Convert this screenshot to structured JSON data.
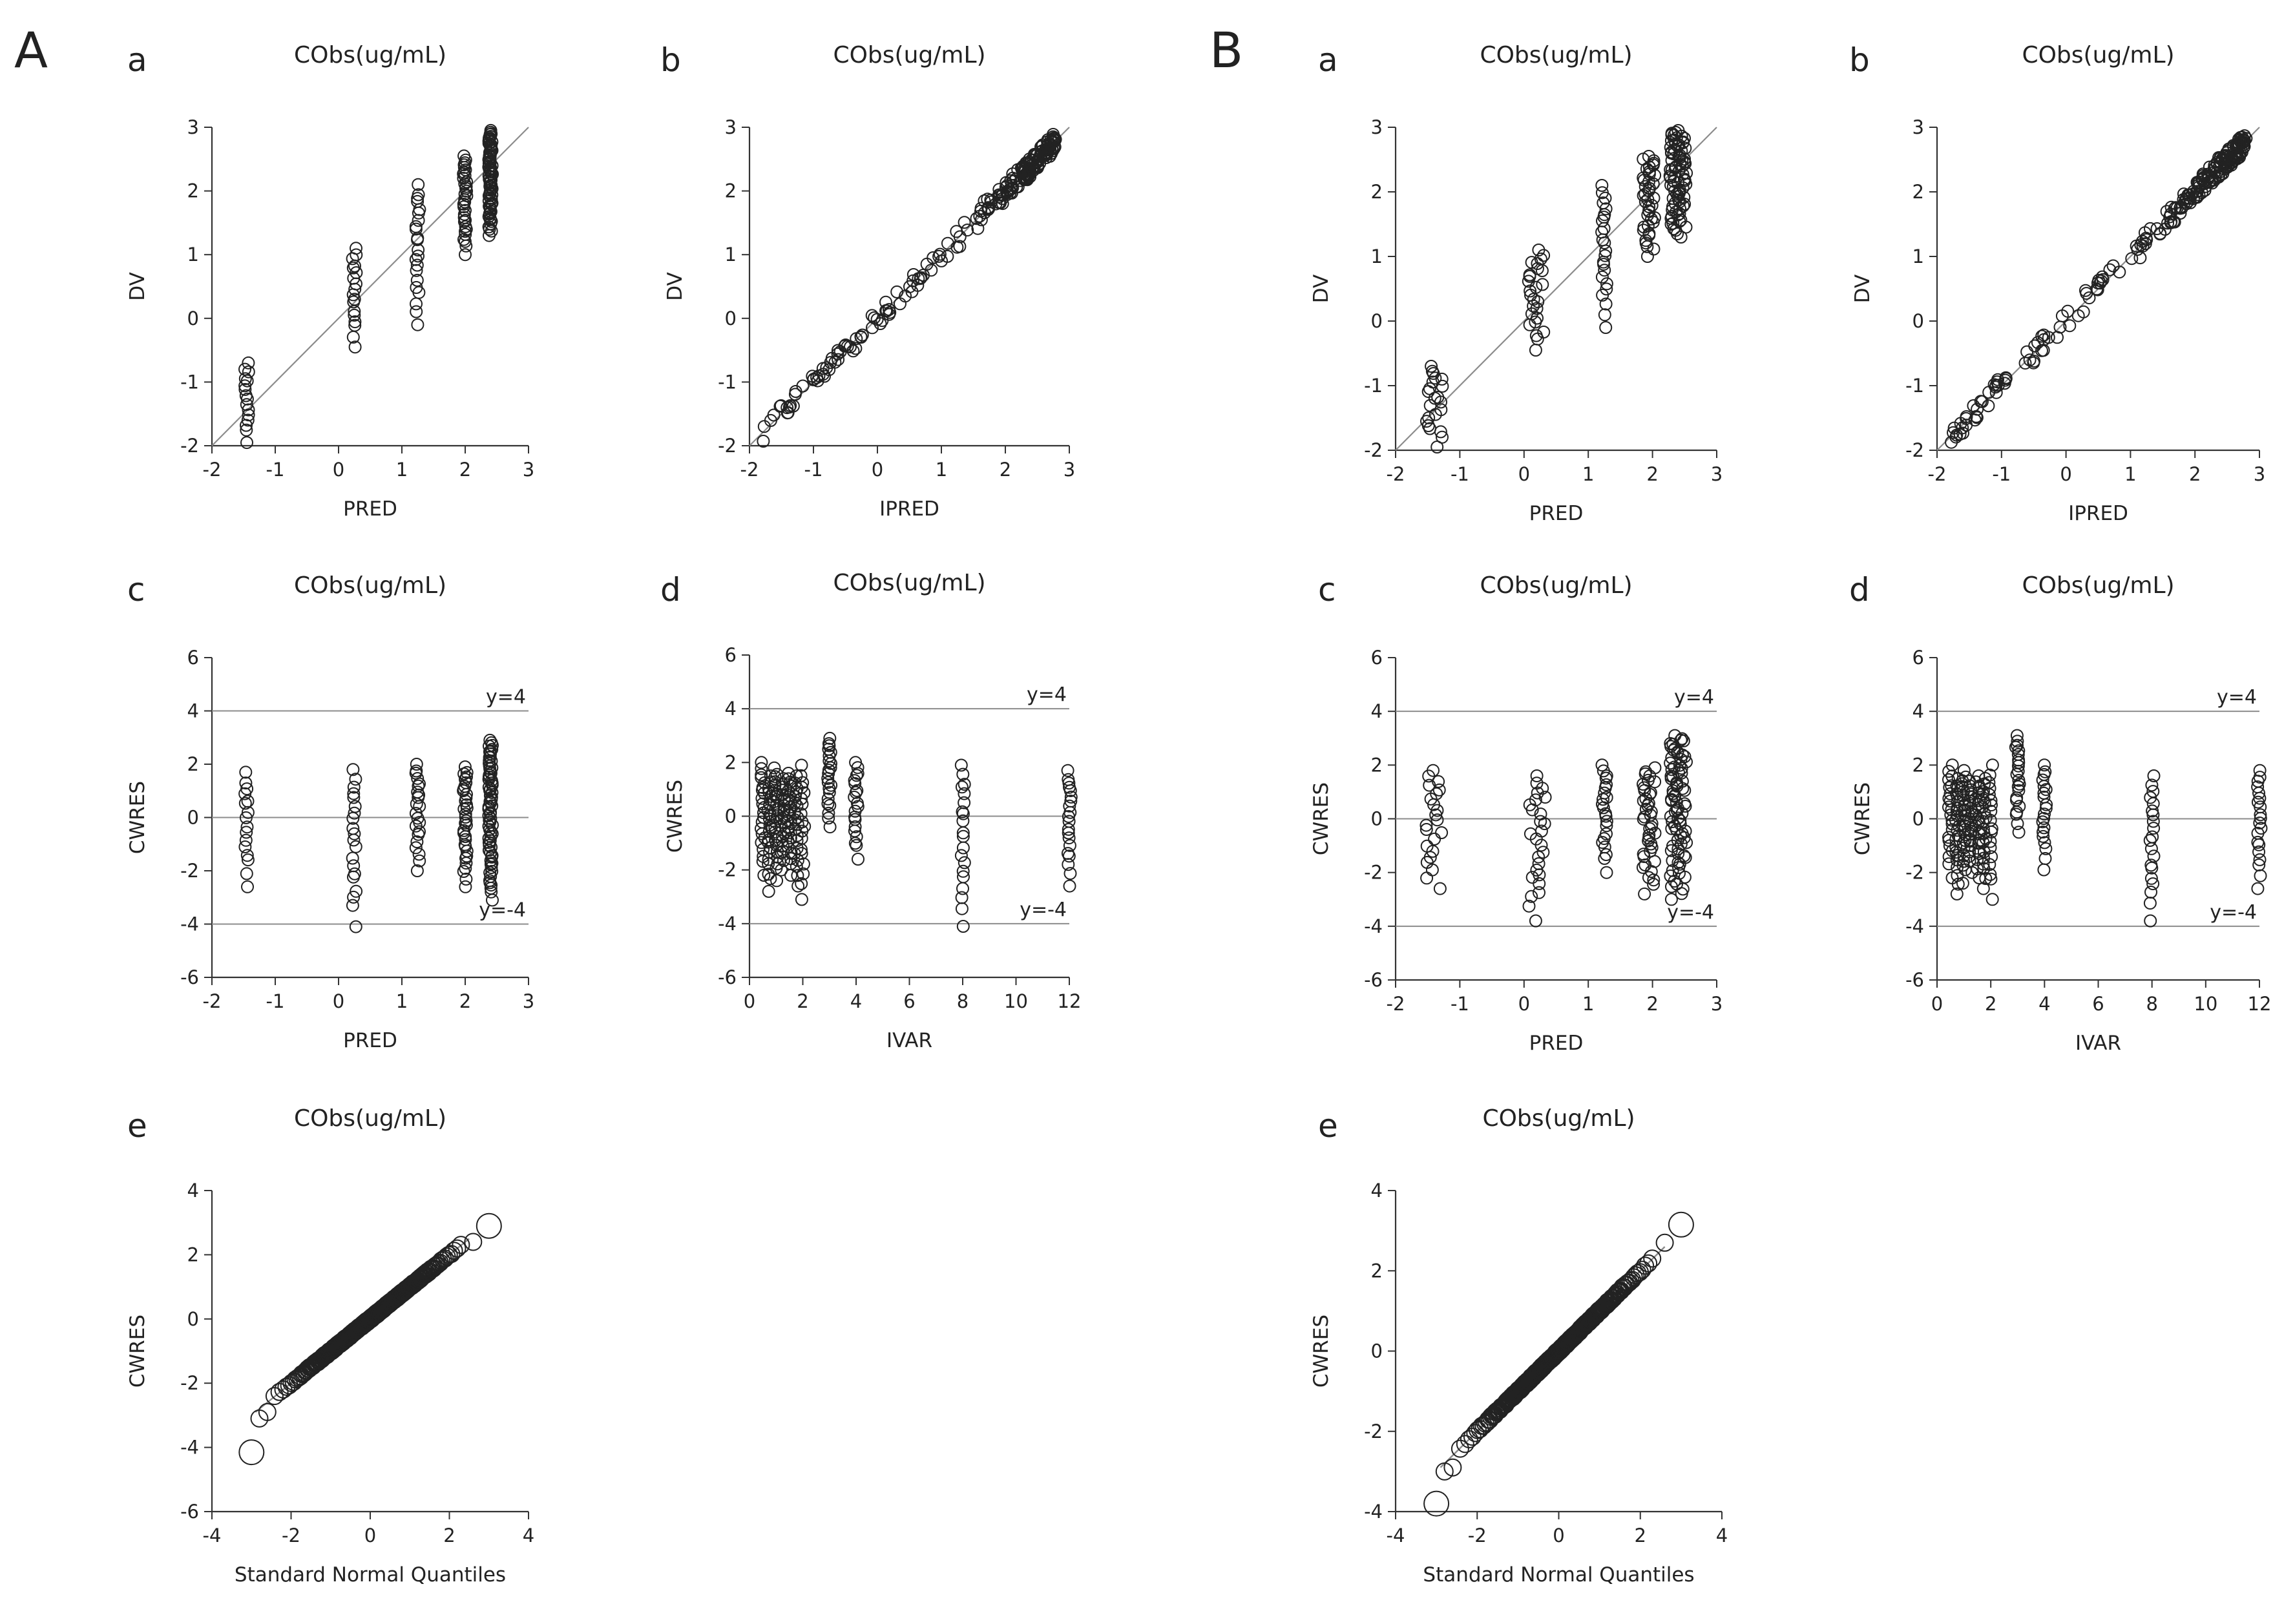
{
  "figure": {
    "groups": [
      {
        "letter": "A",
        "panels": [
          {
            "letter": "a",
            "title": "CObs(ug/mL)"
          },
          {
            "letter": "b",
            "title": "CObs(ug/mL)"
          },
          {
            "letter": "c",
            "title": "CObs(ug/mL)"
          },
          {
            "letter": "d",
            "title": "CObs(ug/mL)"
          },
          {
            "letter": "e",
            "title": "CObs(ug/mL)"
          }
        ]
      },
      {
        "letter": "B",
        "panels": [
          {
            "letter": "a",
            "title": "CObs(ug/mL)"
          },
          {
            "letter": "b",
            "title": "CObs(ug/mL)"
          },
          {
            "letter": "c",
            "title": "CObs(ug/mL)"
          },
          {
            "letter": "d",
            "title": "CObs(ug/mL)"
          },
          {
            "letter": "e",
            "title": "CObs(ug/mL)"
          }
        ]
      }
    ]
  },
  "colors": {
    "marker": "#222222",
    "axis": "#333333",
    "reference_line": "#8c8c8c"
  },
  "chart_data": [
    {
      "id": "A-a",
      "type": "scatter",
      "title": "CObs(ug/mL)",
      "xlabel": "PRED",
      "ylabel": "DV",
      "xlim": [
        -2,
        3
      ],
      "ylim": [
        -2,
        3
      ],
      "xticks": [
        -2,
        -1,
        0,
        1,
        2,
        3
      ],
      "yticks": [
        -2,
        -1,
        0,
        1,
        2,
        3
      ],
      "identity_line": true,
      "h_lines": [],
      "clusters": [
        {
          "x": -1.45,
          "n": 16,
          "y_min": -1.95,
          "y_max": -0.7
        },
        {
          "x": 0.25,
          "n": 18,
          "y_min": -0.45,
          "y_max": 1.1
        },
        {
          "x": 1.25,
          "n": 22,
          "y_min": -0.1,
          "y_max": 2.1
        },
        {
          "x": 2.0,
          "n": 34,
          "y_min": 1.0,
          "y_max": 2.55
        },
        {
          "x": 2.4,
          "n": 70,
          "y_min": 1.3,
          "y_max": 2.95
        }
      ]
    },
    {
      "id": "A-b",
      "type": "scatter",
      "title": "CObs(ug/mL)",
      "xlabel": "IPRED",
      "ylabel": "DV",
      "xlim": [
        -2,
        3
      ],
      "ylim": [
        -2,
        3
      ],
      "xticks": [
        -2,
        -1,
        0,
        1,
        2,
        3
      ],
      "yticks": [
        -2,
        -1,
        0,
        1,
        2,
        3
      ],
      "identity_line": true,
      "h_lines": [],
      "band": {
        "x_min": -1.8,
        "x_max": 2.8,
        "n": 230,
        "spread": 0.12,
        "dense_above": 1.5
      }
    },
    {
      "id": "A-c",
      "type": "scatter",
      "title": "CObs(ug/mL)",
      "xlabel": "PRED",
      "ylabel": "CWRES",
      "xlim": [
        -2,
        3
      ],
      "ylim": [
        -6,
        6
      ],
      "xticks": [
        -2,
        -1,
        0,
        1,
        2,
        3
      ],
      "yticks": [
        -6,
        -4,
        -2,
        0,
        2,
        4,
        6
      ],
      "identity_line": false,
      "h_lines": [
        {
          "y": 4,
          "label": "y=4"
        },
        {
          "y": 0,
          "label": ""
        },
        {
          "y": -4,
          "label": "y=-4"
        }
      ],
      "clusters": [
        {
          "x": -1.45,
          "n": 16,
          "y_min": -2.6,
          "y_max": 1.7
        },
        {
          "x": 0.25,
          "n": 20,
          "y_min": -4.1,
          "y_max": 1.8
        },
        {
          "x": 1.25,
          "n": 22,
          "y_min": -2.0,
          "y_max": 2.0
        },
        {
          "x": 2.0,
          "n": 34,
          "y_min": -2.6,
          "y_max": 1.9
        },
        {
          "x": 2.4,
          "n": 70,
          "y_min": -3.1,
          "y_max": 2.9
        }
      ]
    },
    {
      "id": "A-d",
      "type": "scatter",
      "title": "CObs(ug/mL)",
      "xlabel": "IVAR",
      "ylabel": "CWRES",
      "xlim": [
        0,
        12
      ],
      "ylim": [
        -6,
        6
      ],
      "xticks": [
        0,
        2,
        4,
        6,
        8,
        10,
        12
      ],
      "yticks": [
        -6,
        -4,
        -2,
        0,
        2,
        4,
        6
      ],
      "identity_line": false,
      "h_lines": [
        {
          "y": 4,
          "label": "y=4"
        },
        {
          "y": 0,
          "label": ""
        },
        {
          "y": -4,
          "label": "y=-4"
        }
      ],
      "clusters": [
        {
          "x": 0.5,
          "n": 22,
          "y_min": -2.2,
          "y_max": 2.0
        },
        {
          "x": 0.75,
          "n": 22,
          "y_min": -2.8,
          "y_max": 1.5
        },
        {
          "x": 1.0,
          "n": 24,
          "y_min": -2.4,
          "y_max": 1.8
        },
        {
          "x": 1.25,
          "n": 22,
          "y_min": -2.0,
          "y_max": 1.4
        },
        {
          "x": 1.5,
          "n": 22,
          "y_min": -2.2,
          "y_max": 1.6
        },
        {
          "x": 1.75,
          "n": 20,
          "y_min": -2.6,
          "y_max": 1.5
        },
        {
          "x": 2.0,
          "n": 18,
          "y_min": -3.1,
          "y_max": 1.9
        },
        {
          "x": 3.0,
          "n": 22,
          "y_min": -0.4,
          "y_max": 2.9
        },
        {
          "x": 4.0,
          "n": 20,
          "y_min": -1.6,
          "y_max": 2.0
        },
        {
          "x": 8.0,
          "n": 20,
          "y_min": -4.1,
          "y_max": 1.9
        },
        {
          "x": 12.0,
          "n": 20,
          "y_min": -2.6,
          "y_max": 1.7
        }
      ]
    },
    {
      "id": "A-e",
      "type": "scatter",
      "title": "CObs(ug/mL)",
      "xlabel": "Standard Normal Quantiles",
      "ylabel": "CWRES",
      "xlim": [
        -4,
        4
      ],
      "ylim": [
        -6,
        4
      ],
      "xticks": [
        -4,
        -2,
        0,
        2,
        4
      ],
      "yticks": [
        -6,
        -4,
        -2,
        0,
        2,
        4
      ],
      "identity_line": false,
      "h_lines": [],
      "qq": {
        "n": 320,
        "slope": 1.0,
        "intercept": 0.0,
        "ref_x": [
          -2.9,
          2.5
        ],
        "tail_points": [
          [
            -3.0,
            -4.15
          ],
          [
            -2.8,
            -3.1
          ],
          [
            -2.6,
            -2.9
          ],
          [
            2.6,
            2.4
          ],
          [
            3.0,
            2.9
          ]
        ]
      }
    },
    {
      "id": "B-a",
      "type": "scatter",
      "title": "CObs(ug/mL)",
      "xlabel": "PRED",
      "ylabel": "DV",
      "xlim": [
        -2,
        3
      ],
      "ylim": [
        -2,
        3
      ],
      "xticks": [
        -2,
        -1,
        0,
        1,
        2,
        3
      ],
      "yticks": [
        -2,
        -1,
        0,
        1,
        2,
        3
      ],
      "identity_line": true,
      "h_lines": [],
      "clusters": [
        {
          "x": -1.4,
          "n": 22,
          "y_min": -1.95,
          "y_max": -0.7,
          "spread": 0.13
        },
        {
          "x": 0.2,
          "n": 26,
          "y_min": -0.45,
          "y_max": 1.1,
          "spread": 0.13
        },
        {
          "x": 1.25,
          "n": 24,
          "y_min": -0.1,
          "y_max": 2.1,
          "spread": 0.04
        },
        {
          "x": 1.95,
          "n": 40,
          "y_min": 1.0,
          "y_max": 2.55,
          "spread": 0.1
        },
        {
          "x": 2.4,
          "n": 80,
          "y_min": 1.3,
          "y_max": 2.95,
          "spread": 0.13
        }
      ]
    },
    {
      "id": "B-b",
      "type": "scatter",
      "title": "CObs(ug/mL)",
      "xlabel": "IPRED",
      "ylabel": "DV",
      "xlim": [
        -2,
        3
      ],
      "ylim": [
        -2,
        3
      ],
      "xticks": [
        -2,
        -1,
        0,
        1,
        2,
        3
      ],
      "yticks": [
        -2,
        -1,
        0,
        1,
        2,
        3
      ],
      "identity_line": true,
      "h_lines": [],
      "band": {
        "x_min": -1.8,
        "x_max": 2.8,
        "n": 230,
        "spread": 0.12,
        "dense_above": 1.5
      }
    },
    {
      "id": "B-c",
      "type": "scatter",
      "title": "CObs(ug/mL)",
      "xlabel": "PRED",
      "ylabel": "CWRES",
      "xlim": [
        -2,
        3
      ],
      "ylim": [
        -6,
        6
      ],
      "xticks": [
        -2,
        -1,
        0,
        1,
        2,
        3
      ],
      "yticks": [
        -6,
        -4,
        -2,
        0,
        2,
        4,
        6
      ],
      "identity_line": false,
      "h_lines": [
        {
          "y": 4,
          "label": "y=4"
        },
        {
          "y": 0,
          "label": ""
        },
        {
          "y": -4,
          "label": "y=-4"
        }
      ],
      "clusters": [
        {
          "x": -1.4,
          "n": 22,
          "y_min": -2.6,
          "y_max": 1.8,
          "spread": 0.13
        },
        {
          "x": 0.2,
          "n": 26,
          "y_min": -3.8,
          "y_max": 1.6,
          "spread": 0.13
        },
        {
          "x": 1.25,
          "n": 22,
          "y_min": -2.0,
          "y_max": 2.0,
          "spread": 0.04
        },
        {
          "x": 1.95,
          "n": 40,
          "y_min": -2.8,
          "y_max": 1.9,
          "spread": 0.1
        },
        {
          "x": 2.4,
          "n": 80,
          "y_min": -3.0,
          "y_max": 3.1,
          "spread": 0.13
        }
      ]
    },
    {
      "id": "B-d",
      "type": "scatter",
      "title": "CObs(ug/mL)",
      "xlabel": "IVAR",
      "ylabel": "CWRES",
      "xlim": [
        0,
        12
      ],
      "ylim": [
        -6,
        6
      ],
      "xticks": [
        0,
        2,
        4,
        6,
        8,
        10,
        12
      ],
      "yticks": [
        -6,
        -4,
        -2,
        0,
        2,
        4,
        6
      ],
      "identity_line": false,
      "h_lines": [
        {
          "y": 4,
          "label": "y=4"
        },
        {
          "y": 0,
          "label": ""
        },
        {
          "y": -4,
          "label": "y=-4"
        }
      ],
      "clusters": [
        {
          "x": 0.5,
          "n": 22,
          "y_min": -2.2,
          "y_max": 2.0
        },
        {
          "x": 0.75,
          "n": 22,
          "y_min": -2.8,
          "y_max": 1.5
        },
        {
          "x": 1.0,
          "n": 24,
          "y_min": -2.4,
          "y_max": 1.8
        },
        {
          "x": 1.25,
          "n": 22,
          "y_min": -2.0,
          "y_max": 1.4
        },
        {
          "x": 1.5,
          "n": 22,
          "y_min": -2.2,
          "y_max": 1.6
        },
        {
          "x": 1.75,
          "n": 20,
          "y_min": -2.6,
          "y_max": 1.5
        },
        {
          "x": 2.0,
          "n": 18,
          "y_min": -3.0,
          "y_max": 2.0
        },
        {
          "x": 3.0,
          "n": 22,
          "y_min": -0.5,
          "y_max": 3.1
        },
        {
          "x": 4.0,
          "n": 20,
          "y_min": -1.9,
          "y_max": 2.0
        },
        {
          "x": 8.0,
          "n": 20,
          "y_min": -3.8,
          "y_max": 1.6
        },
        {
          "x": 12.0,
          "n": 20,
          "y_min": -2.6,
          "y_max": 1.8
        }
      ]
    },
    {
      "id": "B-e",
      "type": "scatter",
      "title": "CObs(ug/mL)",
      "xlabel": "Standard Normal Quantiles",
      "ylabel": "CWRES",
      "xlim": [
        -4,
        4
      ],
      "ylim": [
        -4,
        4
      ],
      "xticks": [
        -4,
        -2,
        0,
        2,
        4
      ],
      "yticks": [
        -4,
        -2,
        0,
        2,
        4
      ],
      "identity_line": false,
      "h_lines": [],
      "qq": {
        "n": 320,
        "slope": 1.0,
        "intercept": 0.0,
        "ref_x": [
          -2.9,
          2.6
        ],
        "tail_points": [
          [
            -3.0,
            -3.8
          ],
          [
            -2.8,
            -3.0
          ],
          [
            -2.6,
            -2.9
          ],
          [
            2.6,
            2.7
          ],
          [
            3.0,
            3.15
          ]
        ]
      }
    }
  ]
}
